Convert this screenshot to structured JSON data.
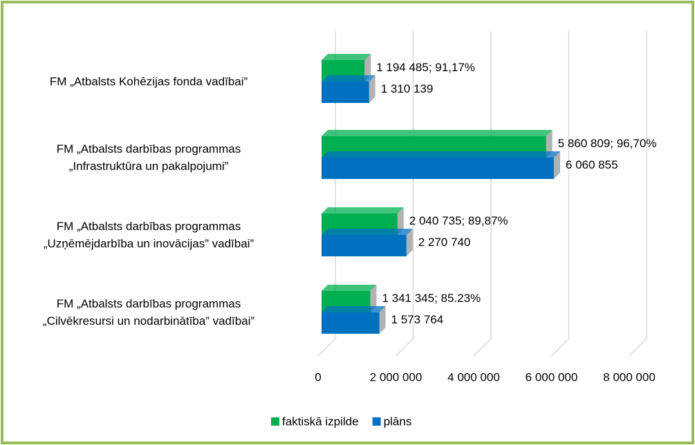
{
  "chart_data": {
    "type": "bar3d_horizontal",
    "categories": [
      "FM „Atbalsts Kohēzijas fonda vadībai”",
      "FM „Atbalsts darbības programmas\n„Infrastruktūra un pakalpojumi”",
      "FM „Atbalsts darbības programmas\n„Uzņēmējdarbība un inovācijas” vadībai”",
      "FM „Atbalsts darbības programmas\n„Cilvēkresursi un nodarbinātība” vadībai”"
    ],
    "series": [
      {
        "name": "faktiskā izpilde",
        "color": "#00b050",
        "values": [
          1194485,
          5860809,
          2040735,
          1341345
        ],
        "value_labels": [
          "1 194 485; 91,17%",
          "5 860 809; 96,70%",
          "2 040 735; 89,87%",
          "1 341 345; 85.23%"
        ]
      },
      {
        "name": "plāns",
        "color": "#0070c0",
        "values": [
          1310139,
          6060855,
          2270740,
          1573764
        ],
        "value_labels": [
          "1 310 139",
          "6 060 855",
          "2 270 740",
          "1 573 764"
        ]
      }
    ],
    "xlim": [
      0,
      8000000
    ],
    "xticks": [
      0,
      {
        "value": 2000000,
        "label": "2 000 000"
      },
      {
        "value": 4000000,
        "label": "4 000 000"
      },
      {
        "value": 6000000,
        "label": "6 000 000"
      },
      {
        "value": 8000000,
        "label": "8 000 000"
      }
    ],
    "grid": true,
    "legend": "bottom"
  }
}
